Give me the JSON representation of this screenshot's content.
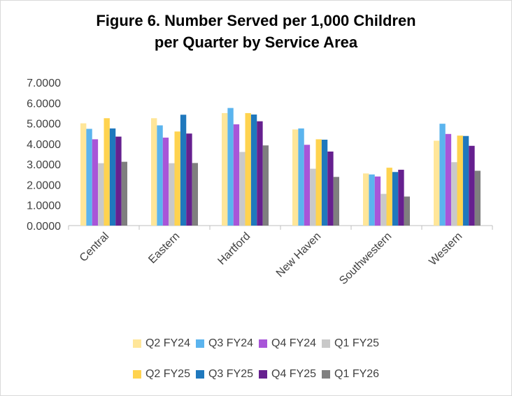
{
  "chart_data": {
    "type": "bar",
    "title_lines": [
      "Figure 6. Number Served per 1,000 Children",
      "per Quarter by Service Area"
    ],
    "categories": [
      "Central",
      "Eastern",
      "Hartford",
      "New Haven",
      "Southwestern",
      "Western"
    ],
    "ylim": [
      0,
      7
    ],
    "yticks": [
      "0.0000",
      "1.0000",
      "2.0000",
      "3.0000",
      "4.0000",
      "5.0000",
      "6.0000",
      "7.0000"
    ],
    "grid": false,
    "legend_position": "bottom",
    "series": [
      {
        "name": "Q2 FY24",
        "color": "#ffe699",
        "values": [
          5.0,
          5.25,
          5.5,
          4.7,
          2.55,
          4.15
        ]
      },
      {
        "name": "Q3 FY24",
        "color": "#5bb4ee",
        "values": [
          4.73,
          4.9,
          5.75,
          4.75,
          2.5,
          4.98
        ]
      },
      {
        "name": "Q4 FY24",
        "color": "#a855d8",
        "values": [
          4.22,
          4.3,
          4.95,
          3.95,
          2.4,
          4.48
        ]
      },
      {
        "name": "Q1 FY25",
        "color": "#c9c9c9",
        "values": [
          3.05,
          3.05,
          3.6,
          2.78,
          1.55,
          3.1
        ]
      },
      {
        "name": "Q2 FY25",
        "color": "#ffd34f",
        "values": [
          5.25,
          4.6,
          5.5,
          4.22,
          2.83,
          4.4
        ]
      },
      {
        "name": "Q3 FY25",
        "color": "#1f78bd",
        "values": [
          4.75,
          5.42,
          5.43,
          4.2,
          2.62,
          4.38
        ]
      },
      {
        "name": "Q4 FY25",
        "color": "#66208f",
        "values": [
          4.35,
          4.5,
          5.1,
          3.62,
          2.73,
          3.9
        ]
      },
      {
        "name": "Q1 FY26",
        "color": "#7f7f7f",
        "values": [
          3.12,
          3.06,
          3.92,
          2.38,
          1.42,
          2.68
        ]
      }
    ]
  }
}
